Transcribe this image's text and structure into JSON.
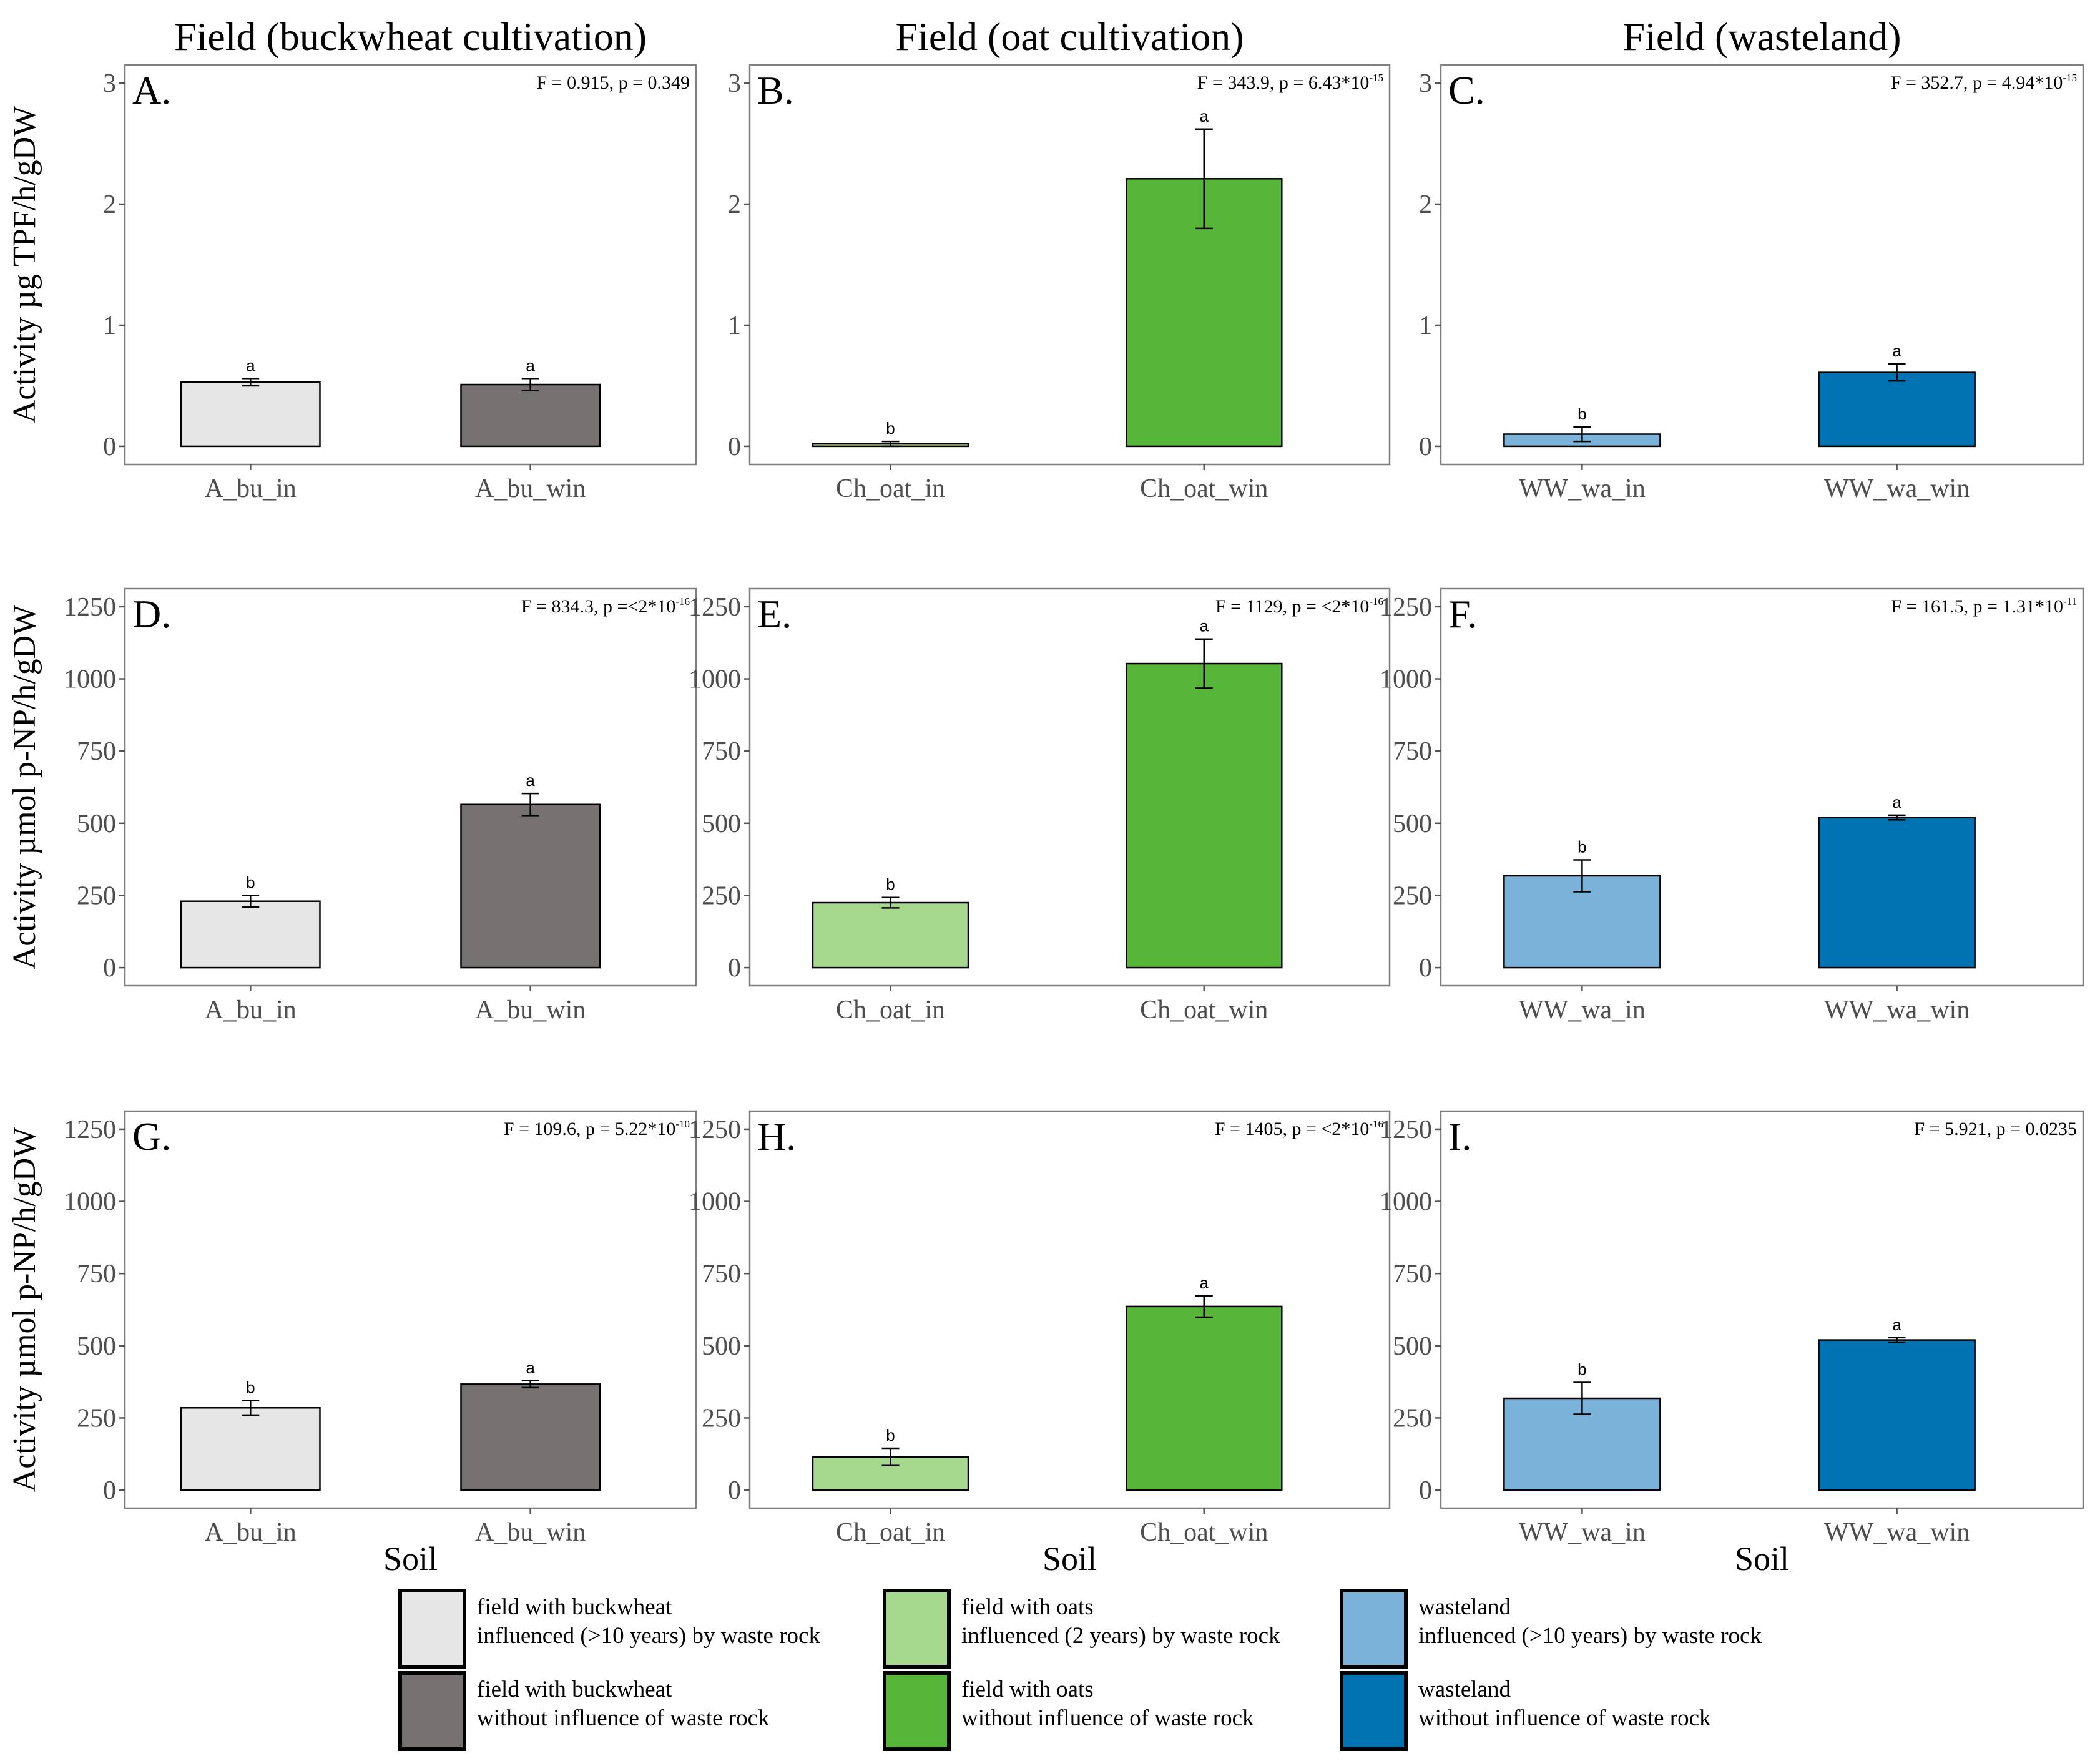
{
  "column_titles": [
    "Field (buckwheat cultivation)",
    "Field (oat cultivation)",
    "Field (wasteland)"
  ],
  "y_labels": [
    "Activity µg TPF/h/gDW",
    "Activity µmol p-NP/h/gDW",
    "Activity µmol p-NP/h/gDW"
  ],
  "x_label": "Soil",
  "colors": {
    "bu_in": "#e6e6e6",
    "bu_win": "#767171",
    "oat_in": "#a6d88e",
    "oat_win": "#57b639",
    "wa_in": "#7ab2da",
    "wa_win": "#0072b2"
  },
  "chart_data": [
    {
      "type": "bar",
      "panel": "A.",
      "stat": "F = 0.915, p = 0.349",
      "ylim": [
        0,
        3
      ],
      "yticks": [
        "0",
        "1",
        "2",
        "3"
      ],
      "categories": [
        "A_bu_in",
        "A_bu_win"
      ],
      "values": [
        0.53,
        0.51
      ],
      "errors": [
        0.03,
        0.05
      ],
      "letters": [
        "a",
        "a"
      ],
      "color_keys": [
        "bu_in",
        "bu_win"
      ]
    },
    {
      "type": "bar",
      "panel": "B.",
      "stat": "F = 343.9, p = 6.43*10",
      "stat_exp": "-15",
      "ylim": [
        0,
        3
      ],
      "yticks": [
        "0",
        "1",
        "2",
        "3"
      ],
      "categories": [
        "Ch_oat_in",
        "Ch_oat_win"
      ],
      "values": [
        0.02,
        2.21
      ],
      "errors": [
        0.02,
        0.41
      ],
      "letters": [
        "b",
        "a"
      ],
      "color_keys": [
        "oat_in",
        "oat_win"
      ]
    },
    {
      "type": "bar",
      "panel": "C.",
      "stat": "F = 352.7, p = 4.94*10",
      "stat_exp": "-15",
      "ylim": [
        0,
        3
      ],
      "yticks": [
        "0",
        "1",
        "2",
        "3"
      ],
      "categories": [
        "WW_wa_in",
        "WW_wa_win"
      ],
      "values": [
        0.1,
        0.61
      ],
      "errors": [
        0.06,
        0.07
      ],
      "letters": [
        "b",
        "a"
      ],
      "color_keys": [
        "wa_in",
        "wa_win"
      ]
    },
    {
      "type": "bar",
      "panel": "D.",
      "stat": "F = 834.3, p =<2*10",
      "stat_exp": "-16",
      "ylim": [
        0,
        1250
      ],
      "yticks": [
        "0",
        "250",
        "500",
        "750",
        "1000",
        "1250"
      ],
      "categories": [
        "A_bu_in",
        "A_bu_win"
      ],
      "values": [
        230,
        565
      ],
      "errors": [
        20,
        38
      ],
      "letters": [
        "b",
        "a"
      ],
      "color_keys": [
        "bu_in",
        "bu_win"
      ]
    },
    {
      "type": "bar",
      "panel": "E.",
      "stat": "F = 1129, p = <2*10",
      "stat_exp": "-16",
      "ylim": [
        0,
        1250
      ],
      "yticks": [
        "0",
        "250",
        "500",
        "750",
        "1000",
        "1250"
      ],
      "categories": [
        "Ch_oat_in",
        "Ch_oat_win"
      ],
      "values": [
        225,
        1053
      ],
      "errors": [
        18,
        85
      ],
      "letters": [
        "b",
        "a"
      ],
      "color_keys": [
        "oat_in",
        "oat_win"
      ]
    },
    {
      "type": "bar",
      "panel": "F.",
      "stat": "F = 161.5, p = 1.31*10",
      "stat_exp": "-11",
      "ylim": [
        0,
        1250
      ],
      "yticks": [
        "0",
        "250",
        "500",
        "750",
        "1000",
        "1250"
      ],
      "categories": [
        "WW_wa_in",
        "WW_wa_win"
      ],
      "values": [
        318,
        520
      ],
      "errors": [
        55,
        8
      ],
      "letters": [
        "b",
        "a"
      ],
      "color_keys": [
        "wa_in",
        "wa_win"
      ]
    },
    {
      "type": "bar",
      "panel": "G.",
      "stat": "F = 109.6, p = 5.22*10",
      "stat_exp": "-10",
      "ylim": [
        0,
        1250
      ],
      "yticks": [
        "0",
        "250",
        "500",
        "750",
        "1000",
        "1250"
      ],
      "categories": [
        "A_bu_in",
        "A_bu_win"
      ],
      "values": [
        285,
        367
      ],
      "errors": [
        25,
        12
      ],
      "letters": [
        "b",
        "a"
      ],
      "color_keys": [
        "bu_in",
        "bu_win"
      ]
    },
    {
      "type": "bar",
      "panel": "H.",
      "stat": "F = 1405, p = <2*10",
      "stat_exp": "-16",
      "ylim": [
        0,
        1250
      ],
      "yticks": [
        "0",
        "250",
        "500",
        "750",
        "1000",
        "1250"
      ],
      "categories": [
        "Ch_oat_in",
        "Ch_oat_win"
      ],
      "values": [
        115,
        636
      ],
      "errors": [
        30,
        37
      ],
      "letters": [
        "b",
        "a"
      ],
      "color_keys": [
        "oat_in",
        "oat_win"
      ]
    },
    {
      "type": "bar",
      "panel": "I.",
      "stat": "F = 5.921, p = 0.0235",
      "ylim": [
        0,
        1250
      ],
      "yticks": [
        "0",
        "250",
        "500",
        "750",
        "1000",
        "1250"
      ],
      "categories": [
        "WW_wa_in",
        "WW_wa_win"
      ],
      "values": [
        318,
        520
      ],
      "errors": [
        55,
        8
      ],
      "letters": [
        "b",
        "a"
      ],
      "color_keys": [
        "wa_in",
        "wa_win"
      ]
    }
  ],
  "legend": [
    {
      "key": "bu_in",
      "line1": "field with buckwheat",
      "line2": "influenced (>10 years) by waste rock"
    },
    {
      "key": "bu_win",
      "line1": "field with buckwheat",
      "line2": "without influence of waste rock"
    },
    {
      "key": "oat_in",
      "line1": "field with oats",
      "line2": "influenced (2 years) by waste rock"
    },
    {
      "key": "oat_win",
      "line1": "field with oats",
      "line2": "without influence of waste rock"
    },
    {
      "key": "wa_in",
      "line1": "wasteland",
      "line2": "influenced (>10 years) by waste rock"
    },
    {
      "key": "wa_win",
      "line1": "wasteland",
      "line2": "without influence of waste rock"
    }
  ]
}
